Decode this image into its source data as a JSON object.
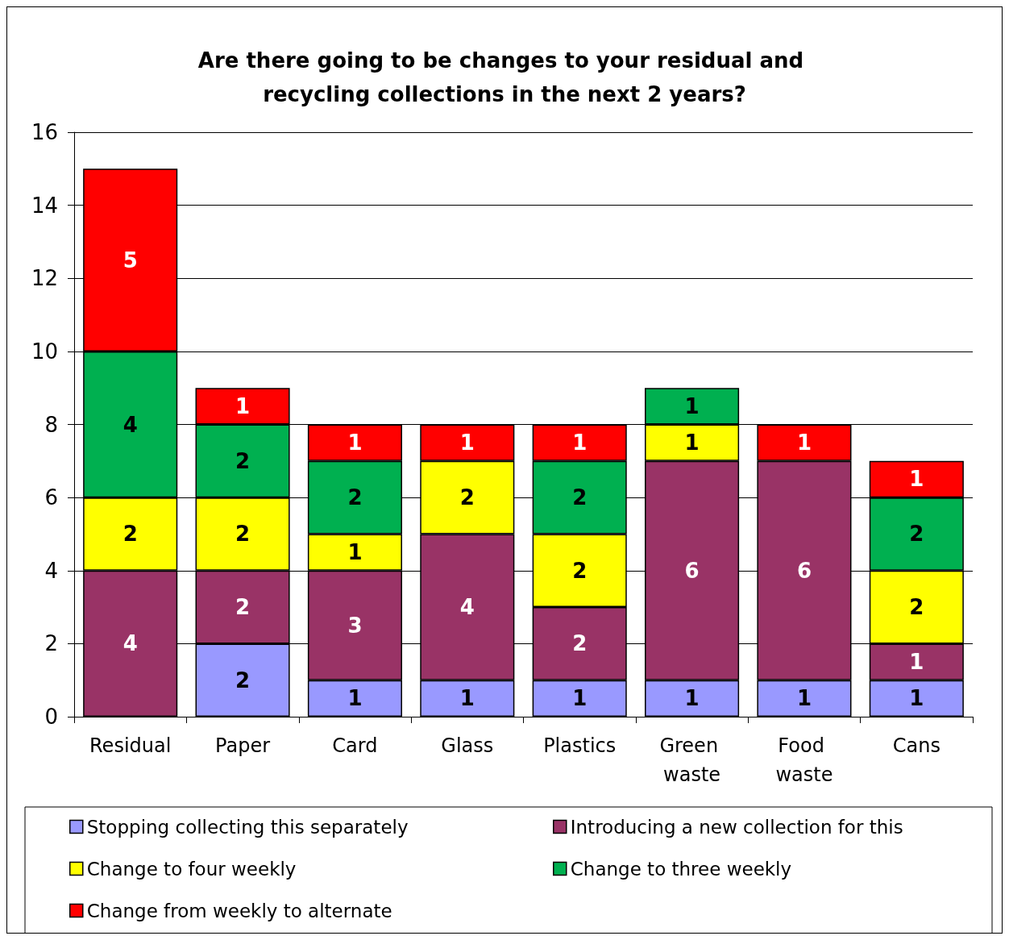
{
  "chart_data": {
    "type": "bar",
    "title": "Are there going to be changes to your residual and recycling collections in the next 2 years?",
    "categories": [
      "Residual",
      "Paper",
      "Card",
      "Glass",
      "Plastics",
      "Green waste",
      "Food waste",
      "Cans"
    ],
    "stacked": true,
    "data_labels": true,
    "grid": "y",
    "legend": "bottom",
    "ylim": [
      0,
      16
    ],
    "yticks": [
      0,
      2,
      4,
      6,
      8,
      10,
      12,
      14,
      16
    ],
    "series": [
      {
        "name": "Stopping collecting this separately",
        "color": "#9999ff",
        "values": [
          null,
          2,
          1,
          1,
          1,
          1,
          1,
          1
        ]
      },
      {
        "name": "Introducing a new collection for this",
        "color": "#993366",
        "values": [
          4,
          2,
          3,
          4,
          2,
          6,
          6,
          1
        ]
      },
      {
        "name": "Change to four weekly",
        "color": "#ffff00",
        "values": [
          2,
          2,
          1,
          2,
          2,
          1,
          null,
          2
        ]
      },
      {
        "name": "Change to three weekly",
        "color": "#00b050",
        "values": [
          4,
          2,
          2,
          null,
          2,
          1,
          null,
          2
        ]
      },
      {
        "name": "Change from weekly to alternate",
        "color": "#ff0000",
        "values": [
          5,
          1,
          1,
          1,
          1,
          null,
          1,
          1
        ]
      }
    ]
  }
}
